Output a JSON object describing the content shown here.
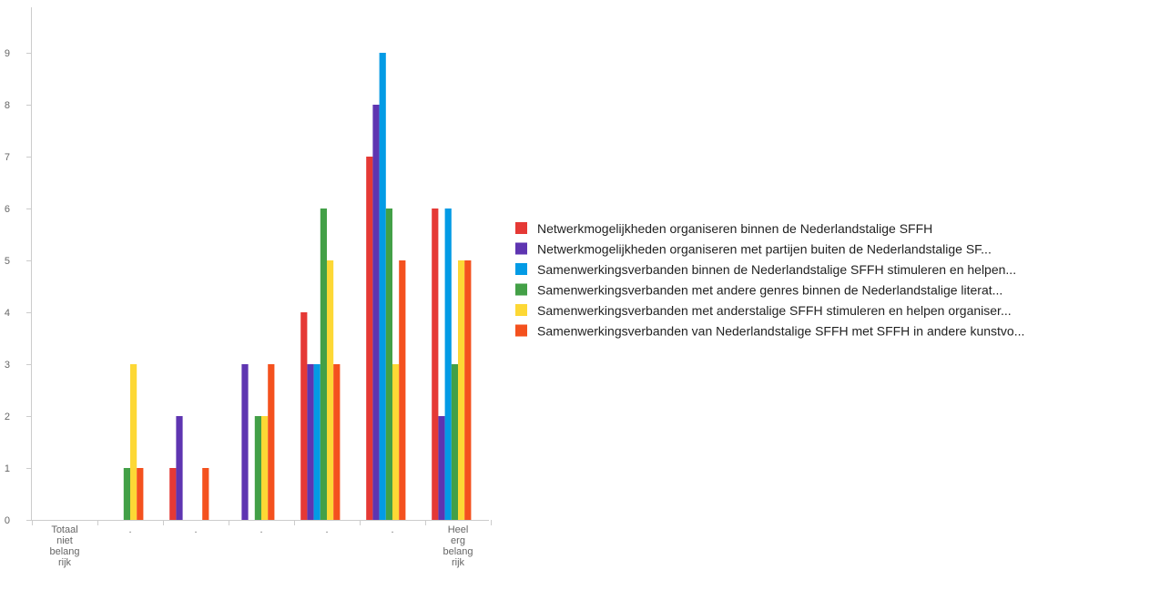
{
  "chart_data": {
    "type": "bar",
    "title": "",
    "xlabel": "",
    "ylabel": "",
    "ylim": [
      0,
      10
    ],
    "yticks": [
      0,
      1,
      2,
      3,
      4,
      5,
      6,
      7,
      8,
      9
    ],
    "grid": false,
    "legend_position": "right",
    "categories": [
      [
        "Totaal",
        "niet",
        "belang",
        "rijk"
      ],
      [
        "."
      ],
      [
        "."
      ],
      [
        "."
      ],
      [
        "."
      ],
      [
        "."
      ],
      [
        "Heel",
        "erg",
        "belang",
        "rijk"
      ]
    ],
    "series": [
      {
        "name": "Netwerkmogelijkheden organiseren binnen de Nederlandstalige SFFH",
        "color": "#e53935",
        "values": [
          0,
          0,
          1,
          0,
          4,
          7,
          6
        ]
      },
      {
        "name": "Netwerkmogelijkheden organiseren met partijen buiten de Nederlandstalige SF...",
        "color": "#5e35b1",
        "values": [
          0,
          0,
          2,
          3,
          3,
          8,
          2
        ]
      },
      {
        "name": "Samenwerkingsverbanden binnen de Nederlandstalige SFFH stimuleren en helpen...",
        "color": "#039be5",
        "values": [
          0,
          0,
          0,
          0,
          3,
          9,
          6
        ]
      },
      {
        "name": "Samenwerkingsverbanden met andere genres binnen de Nederlandstalige literat...",
        "color": "#43a047",
        "values": [
          0,
          1,
          0,
          2,
          6,
          6,
          3
        ]
      },
      {
        "name": "Samenwerkingsverbanden met anderstalige SFFH stimuleren en helpen organiser...",
        "color": "#fdd835",
        "values": [
          0,
          3,
          0,
          2,
          5,
          3,
          5
        ]
      },
      {
        "name": "Samenwerkingsverbanden van Nederlandstalige SFFH met SFFH in andere kunstvo...",
        "color": "#f4511e",
        "values": [
          0,
          1,
          1,
          3,
          3,
          5,
          5
        ]
      }
    ]
  }
}
